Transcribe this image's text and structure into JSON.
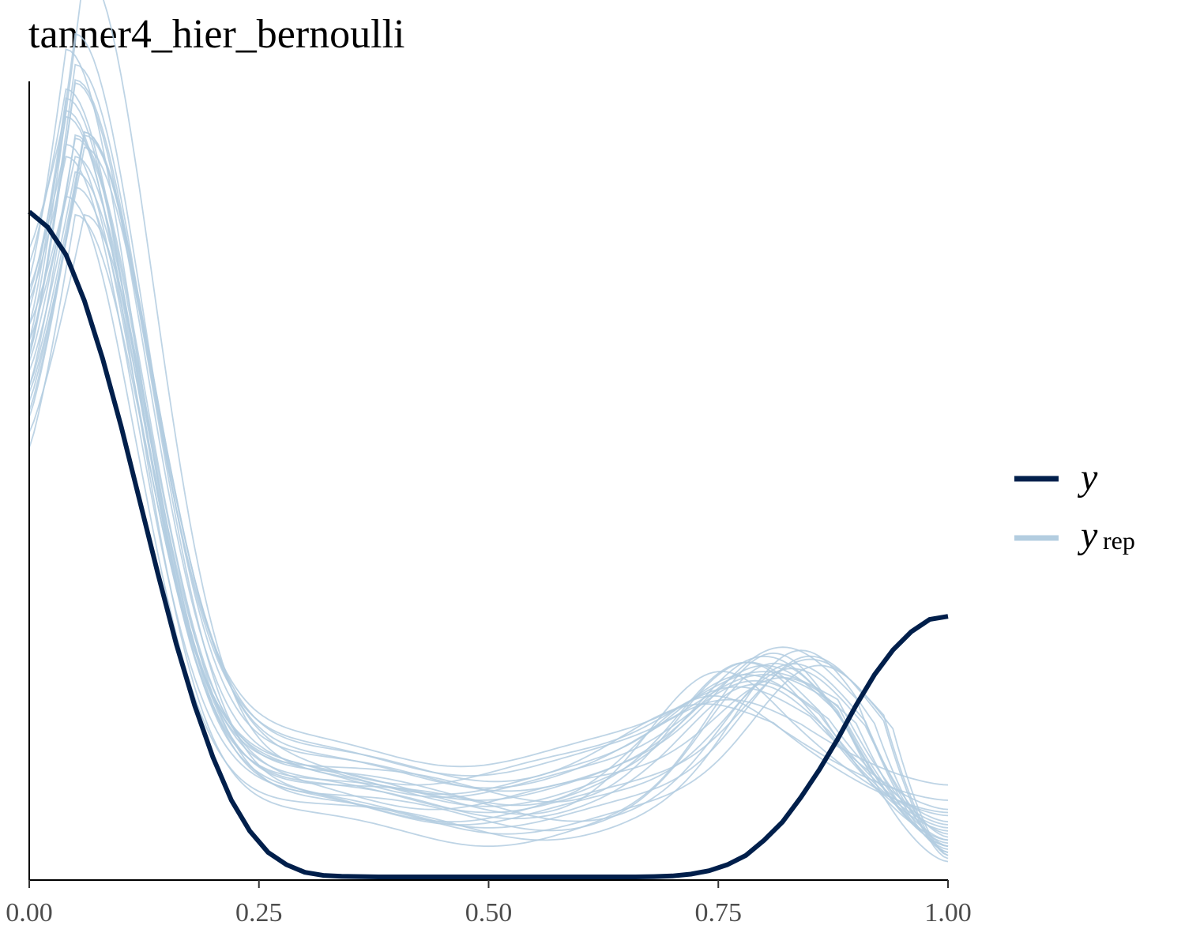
{
  "chart_data": {
    "type": "line",
    "title": "tanner4_hier_bernoulli",
    "xlabel": "",
    "ylabel": "",
    "xlim": [
      0,
      1
    ],
    "x_ticks": [
      "0.00",
      "0.25",
      "0.50",
      "0.75",
      "1.00"
    ],
    "x_tick_values": [
      0,
      0.25,
      0.5,
      0.75,
      1
    ],
    "y_axis_labels_shown": false,
    "grid": false,
    "legend_position": "right",
    "colors": {
      "y": "#011f4b",
      "yrep": "#b3cde0"
    },
    "legend": [
      {
        "key": "y",
        "label": "y",
        "subscript": ""
      },
      {
        "key": "yrep",
        "label": "y",
        "subscript": "rep"
      }
    ],
    "x": [
      0,
      0.02,
      0.04,
      0.06,
      0.08,
      0.1,
      0.12,
      0.14,
      0.16,
      0.18,
      0.2,
      0.22,
      0.24,
      0.26,
      0.28,
      0.3,
      0.32,
      0.34,
      0.36,
      0.38,
      0.4,
      0.42,
      0.44,
      0.46,
      0.48,
      0.5,
      0.52,
      0.54,
      0.56,
      0.58,
      0.6,
      0.62,
      0.64,
      0.66,
      0.68,
      0.7,
      0.72,
      0.74,
      0.76,
      0.78,
      0.8,
      0.82,
      0.84,
      0.86,
      0.88,
      0.9,
      0.92,
      0.94,
      0.96,
      0.98,
      1
    ],
    "series": [
      {
        "name": "y",
        "values": [
          2.17,
          2.12,
          2.03,
          1.88,
          1.69,
          1.47,
          1.23,
          0.99,
          0.76,
          0.56,
          0.39,
          0.25,
          0.15,
          0.08,
          0.04,
          0.015,
          0.005,
          0.002,
          0.001,
          0,
          0,
          0,
          0,
          0,
          0,
          0,
          0,
          0,
          0,
          0,
          0,
          0,
          0,
          0,
          0.001,
          0.003,
          0.009,
          0.02,
          0.04,
          0.07,
          0.12,
          0.18,
          0.26,
          0.35,
          0.45,
          0.56,
          0.66,
          0.74,
          0.8,
          0.84,
          0.85
        ]
      }
    ],
    "replicates": [
      {
        "peak_x": 0.06,
        "peak_y": 2.61,
        "y0": 1.75,
        "trough_x": 0.5,
        "trough_y": 0.35,
        "bump_x": 0.8,
        "bump_y": 0.72,
        "end_y": 0.1
      },
      {
        "peak_x": 0.04,
        "peak_y": 2.4,
        "y0": 1.95,
        "trough_x": 0.46,
        "trough_y": 0.3,
        "bump_x": 0.78,
        "bump_y": 0.7,
        "end_y": 0.15
      },
      {
        "peak_x": 0.05,
        "peak_y": 2.35,
        "y0": 1.8,
        "trough_x": 0.52,
        "trough_y": 0.4,
        "bump_x": 0.82,
        "bump_y": 0.75,
        "end_y": 0.08
      },
      {
        "peak_x": 0.04,
        "peak_y": 2.25,
        "y0": 2.0,
        "trough_x": 0.55,
        "trough_y": 0.32,
        "bump_x": 0.75,
        "bump_y": 0.68,
        "end_y": 0.2
      },
      {
        "peak_x": 0.05,
        "peak_y": 2.2,
        "y0": 1.7,
        "trough_x": 0.48,
        "trough_y": 0.45,
        "bump_x": 0.8,
        "bump_y": 0.66,
        "end_y": 0.12
      },
      {
        "peak_x": 0.06,
        "peak_y": 2.15,
        "y0": 1.6,
        "trough_x": 0.5,
        "trough_y": 0.28,
        "bump_x": 0.85,
        "bump_y": 0.72,
        "end_y": 0.06
      },
      {
        "peak_x": 0.04,
        "peak_y": 2.1,
        "y0": 1.9,
        "trough_x": 0.45,
        "trough_y": 0.38,
        "bump_x": 0.79,
        "bump_y": 0.64,
        "end_y": 0.18
      },
      {
        "peak_x": 0.05,
        "peak_y": 2.05,
        "y0": 1.75,
        "trough_x": 0.6,
        "trough_y": 0.3,
        "bump_x": 0.83,
        "bump_y": 0.7,
        "end_y": 0.1
      },
      {
        "peak_x": 0.06,
        "peak_y": 2.0,
        "y0": 1.55,
        "trough_x": 0.42,
        "trough_y": 0.42,
        "bump_x": 0.77,
        "bump_y": 0.62,
        "end_y": 0.22
      },
      {
        "peak_x": 0.04,
        "peak_y": 2.28,
        "y0": 2.05,
        "trough_x": 0.5,
        "trough_y": 0.22,
        "bump_x": 0.81,
        "bump_y": 0.73,
        "end_y": 0.05
      },
      {
        "peak_x": 0.05,
        "peak_y": 1.95,
        "y0": 1.65,
        "trough_x": 0.54,
        "trough_y": 0.35,
        "bump_x": 0.74,
        "bump_y": 0.6,
        "end_y": 0.25
      },
      {
        "peak_x": 0.05,
        "peak_y": 2.12,
        "y0": 1.7,
        "trough_x": 0.47,
        "trough_y": 0.48,
        "bump_x": 0.8,
        "bump_y": 0.67,
        "end_y": 0.14
      },
      {
        "peak_x": 0.06,
        "peak_y": 1.9,
        "y0": 1.45,
        "trough_x": 0.52,
        "trough_y": 0.26,
        "bump_x": 0.86,
        "bump_y": 0.69,
        "end_y": 0.07
      },
      {
        "peak_x": 0.04,
        "peak_y": 2.18,
        "y0": 1.85,
        "trough_x": 0.58,
        "trough_y": 0.36,
        "bump_x": 0.78,
        "bump_y": 0.71,
        "end_y": 0.12
      },
      {
        "peak_x": 0.05,
        "peak_y": 2.08,
        "y0": 1.6,
        "trough_x": 0.44,
        "trough_y": 0.34,
        "bump_x": 0.82,
        "bump_y": 0.65,
        "end_y": 0.09
      },
      {
        "peak_x": 0.06,
        "peak_y": 2.02,
        "y0": 1.5,
        "trough_x": 0.5,
        "trough_y": 0.41,
        "bump_x": 0.76,
        "bump_y": 0.58,
        "end_y": 0.3
      },
      {
        "peak_x": 0.04,
        "peak_y": 1.98,
        "y0": 1.8,
        "trough_x": 0.56,
        "trough_y": 0.24,
        "bump_x": 0.84,
        "bump_y": 0.74,
        "end_y": 0.08
      },
      {
        "peak_x": 0.05,
        "peak_y": 2.22,
        "y0": 1.72,
        "trough_x": 0.49,
        "trough_y": 0.37,
        "bump_x": 0.8,
        "bump_y": 0.69,
        "end_y": 0.11
      },
      {
        "peak_x": 0.05,
        "peak_y": 1.85,
        "y0": 1.4,
        "trough_x": 0.53,
        "trough_y": 0.31,
        "bump_x": 0.79,
        "bump_y": 0.63,
        "end_y": 0.16
      },
      {
        "peak_x": 0.04,
        "peak_y": 2.06,
        "y0": 1.88,
        "trough_x": 0.47,
        "trough_y": 0.29,
        "bump_x": 0.83,
        "bump_y": 0.68,
        "end_y": 0.13
      },
      {
        "peak_x": 0.06,
        "peak_y": 1.95,
        "y0": 1.58,
        "trough_x": 0.51,
        "trough_y": 0.43,
        "bump_x": 0.73,
        "bump_y": 0.57,
        "end_y": 0.21
      },
      {
        "peak_x": 0.05,
        "peak_y": 2.14,
        "y0": 1.68,
        "trough_x": 0.57,
        "trough_y": 0.27,
        "bump_x": 0.81,
        "bump_y": 0.7,
        "end_y": 0.1
      },
      {
        "peak_x": 0.04,
        "peak_y": 2.0,
        "y0": 1.92,
        "trough_x": 0.45,
        "trough_y": 0.39,
        "bump_x": 0.78,
        "bump_y": 0.66,
        "end_y": 0.17
      },
      {
        "peak_x": 0.05,
        "peak_y": 1.92,
        "y0": 1.52,
        "trough_x": 0.5,
        "trough_y": 0.33,
        "bump_x": 0.85,
        "bump_y": 0.71,
        "end_y": 0.07
      }
    ]
  }
}
